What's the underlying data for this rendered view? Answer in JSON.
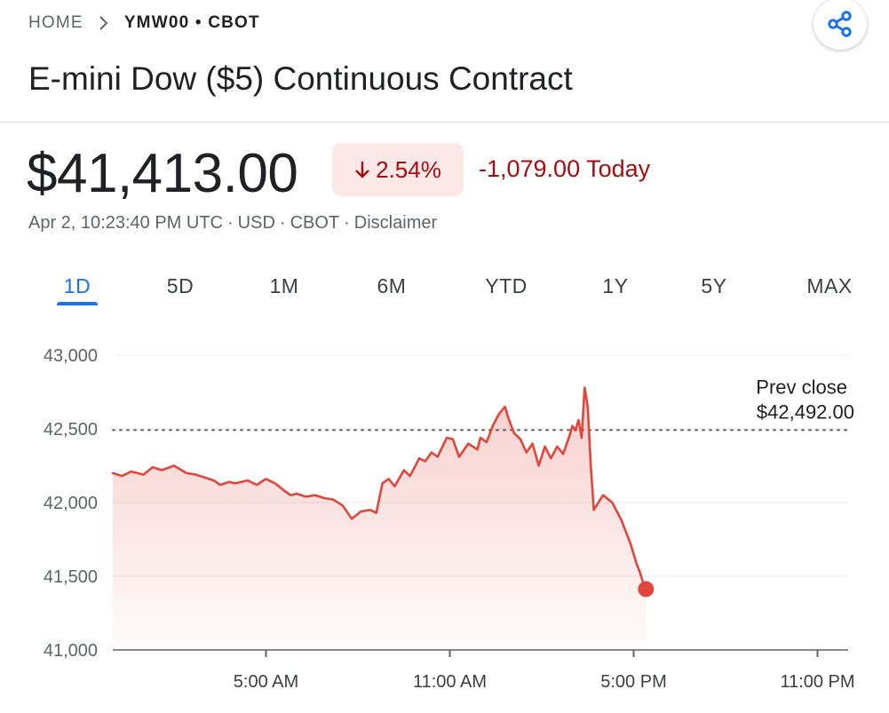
{
  "breadcrumb": {
    "home": "HOME",
    "current": "YMW00 • CBOT"
  },
  "icons": {
    "breadcrumb_separator": "chevron-right-icon",
    "share": "share-icon",
    "change_direction": "arrow-down-icon"
  },
  "title": "E-mini Dow ($5) Continuous Contract",
  "quote": {
    "price": "$41,413.00",
    "percent_change": "2.54%",
    "change_today": "-1,079.00 Today",
    "timestamp": "Apr 2, 10:23:40 PM UTC",
    "currency": "USD",
    "exchange": "CBOT",
    "disclaimer": "Disclaimer"
  },
  "tabs": [
    {
      "label": "1D",
      "active": true
    },
    {
      "label": "5D",
      "active": false
    },
    {
      "label": "1M",
      "active": false
    },
    {
      "label": "6M",
      "active": false
    },
    {
      "label": "YTD",
      "active": false
    },
    {
      "label": "1Y",
      "active": false
    },
    {
      "label": "5Y",
      "active": false
    },
    {
      "label": "MAX",
      "active": false
    }
  ],
  "colors": {
    "down": "#a50e0e",
    "down_badge_bg": "#fce8e6",
    "line": "#e0463b",
    "active_tab": "#1a73e8",
    "share_icon": "#1a73e8"
  },
  "chart_data": {
    "type": "area",
    "title": "",
    "xlabel": "",
    "ylabel": "",
    "ylim": [
      41000,
      43000
    ],
    "xlim": [
      0,
      24
    ],
    "x_unit": "hours",
    "y_ticks": [
      43000,
      42500,
      42000,
      41500,
      41000
    ],
    "y_tick_labels": [
      "43,000",
      "42,500",
      "42,000",
      "41,500",
      "41,000"
    ],
    "x_ticks": [
      5,
      11,
      17,
      23
    ],
    "x_tick_labels": [
      "5:00 AM",
      "11:00 AM",
      "5:00 PM",
      "11:00 PM"
    ],
    "grid": true,
    "reference_line": {
      "label": "Prev close",
      "value_label": "$42,492.00",
      "value": 42492,
      "style": "dotted"
    },
    "series": [
      {
        "x": [
          0,
          0.3,
          0.6,
          1.0,
          1.3,
          1.6,
          2.0,
          2.4,
          2.7,
          3.0,
          3.3,
          3.5,
          3.8,
          4.0,
          4.4,
          4.7,
          5.0,
          5.3,
          5.6,
          5.8,
          6.0,
          6.3,
          6.6,
          6.9,
          7.2,
          7.5,
          7.8,
          8.1,
          8.4,
          8.6,
          8.8,
          9.0,
          9.2,
          9.5,
          9.7,
          9.9,
          10.0,
          10.2,
          10.4,
          10.6,
          10.9,
          11.1,
          11.3,
          11.6,
          11.9,
          12.0,
          12.2,
          12.4,
          12.6,
          12.8,
          12.9,
          13.1,
          13.3,
          13.5,
          13.7,
          13.9,
          14.1,
          14.3,
          14.5,
          14.7,
          14.9,
          15.0,
          15.1,
          15.2,
          15.3,
          15.4,
          15.5,
          15.6,
          15.7,
          16.0,
          16.3,
          16.6,
          16.9,
          17.1,
          17.2,
          17.3,
          17.4
        ],
        "y": [
          42200,
          42180,
          42210,
          42190,
          42240,
          42220,
          42250,
          42200,
          42190,
          42170,
          42150,
          42120,
          42140,
          42130,
          42150,
          42120,
          42160,
          42130,
          42080,
          42050,
          42060,
          42040,
          42050,
          42030,
          42020,
          41980,
          41890,
          41940,
          41950,
          41930,
          42130,
          42160,
          42110,
          42220,
          42180,
          42260,
          42300,
          42280,
          42340,
          42310,
          42440,
          42430,
          42310,
          42400,
          42360,
          42440,
          42410,
          42520,
          42600,
          42650,
          42580,
          42470,
          42430,
          42340,
          42400,
          42250,
          42380,
          42300,
          42380,
          42330,
          42450,
          42520,
          42490,
          42560,
          42440,
          42780,
          42650,
          42250,
          41950,
          42050,
          42000,
          41880,
          41720,
          41580,
          41530,
          41460,
          41413
        ]
      }
    ],
    "last_point": {
      "x": 17.4,
      "y": 41413
    }
  }
}
